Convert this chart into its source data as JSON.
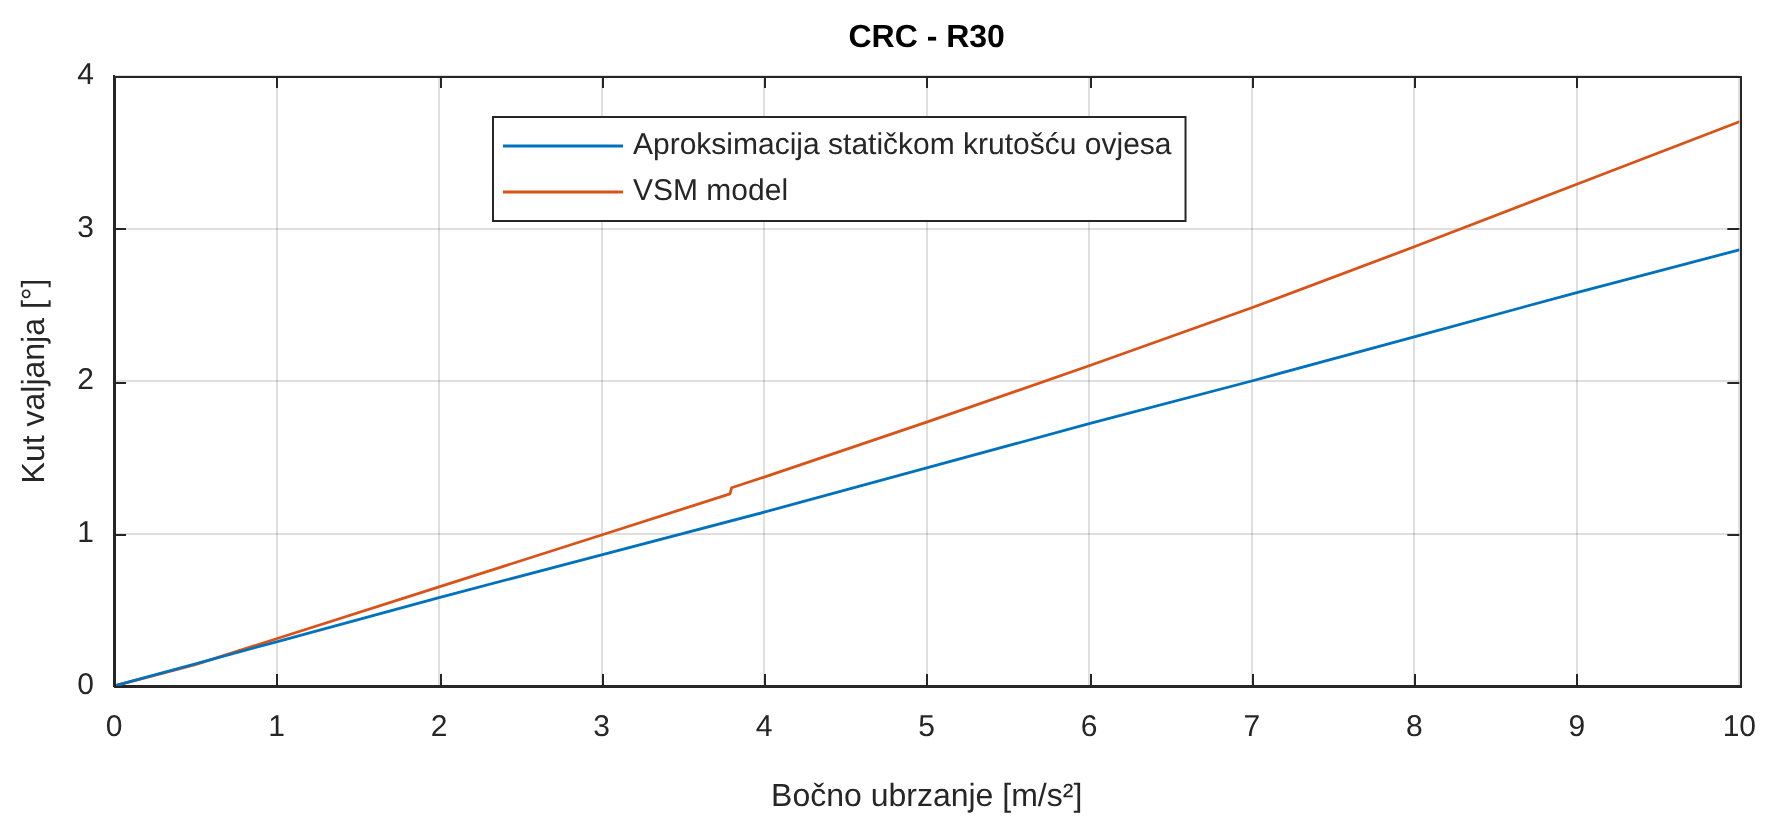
{
  "chart_data": {
    "type": "line",
    "title": "CRC - R30",
    "xlabel": "Bočno ubrzanje [m/s²]",
    "ylabel": "Kut valjanja [°]",
    "series": [
      {
        "name": "Aproksimacija statičkom krutošću ovjesa",
        "color": "#0072bd",
        "x": [
          0,
          1,
          2,
          3,
          4,
          5,
          6,
          7,
          8,
          9,
          10
        ],
        "values": [
          0,
          0.29,
          0.58,
          0.86,
          1.14,
          1.43,
          1.72,
          2.0,
          2.29,
          2.58,
          2.86
        ]
      },
      {
        "name": "VSM model",
        "color": "#d95319",
        "x": [
          0,
          0.5,
          1,
          2,
          3,
          3.79,
          3.8,
          4,
          5,
          6,
          7,
          8,
          9,
          10
        ],
        "values": [
          0,
          0.14,
          0.31,
          0.65,
          0.99,
          1.26,
          1.3,
          1.37,
          1.73,
          2.1,
          2.48,
          2.88,
          3.29,
          3.7
        ]
      }
    ],
    "xlim": [
      0,
      10
    ],
    "ylim": [
      0,
      4
    ],
    "xticks": [
      0,
      1,
      2,
      3,
      4,
      5,
      6,
      7,
      8,
      9,
      10
    ],
    "yticks": [
      0,
      1,
      2,
      3,
      4
    ],
    "grid": true,
    "legend": "top",
    "marker": "none",
    "line_style": "solid"
  }
}
